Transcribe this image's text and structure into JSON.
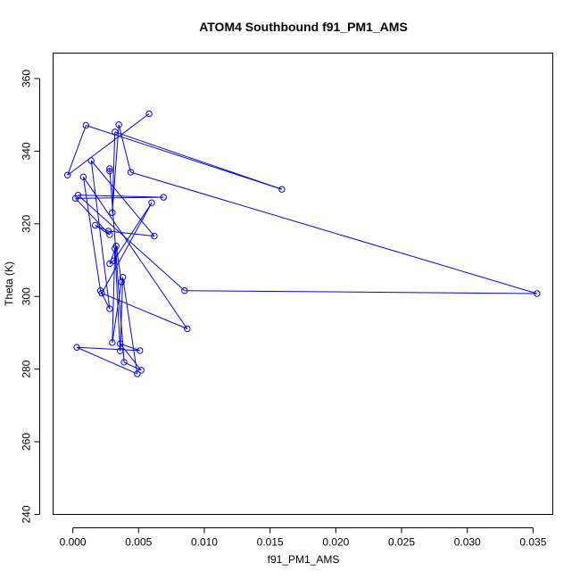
{
  "chart_data": {
    "type": "line",
    "title": "ATOM4 Southbound f91_PM1_AMS",
    "xlabel": "f91_PM1_AMS",
    "ylabel": "Theta (K)",
    "xlim": [
      -0.0015,
      0.0365
    ],
    "ylim": [
      240,
      367
    ],
    "xticks": [
      "0.000",
      "0.005",
      "0.010",
      "0.015",
      "0.020",
      "0.025",
      "0.030",
      "0.035"
    ],
    "yticks": [
      "240",
      "260",
      "280",
      "300",
      "320",
      "340",
      "360"
    ],
    "grid": false,
    "legend": "none",
    "marker": "open-circle",
    "color": "#0000ff",
    "series": [
      {
        "points": [
          [
            0.0058,
            350.3
          ],
          [
            -0.0004,
            333.4
          ],
          [
            0.001,
            347.1
          ],
          [
            0.0159,
            329.5
          ],
          [
            0.0032,
            345.3
          ],
          [
            0.003,
            323.1
          ],
          [
            0.0035,
            347.3
          ],
          [
            0.0044,
            334.2
          ],
          [
            0.0353,
            300.8
          ],
          [
            0.0085,
            301.6
          ],
          [
            0.0004,
            327.9
          ],
          [
            0.0069,
            327.3
          ],
          [
            0.0002,
            327.0
          ],
          [
            0.0028,
            317.0
          ],
          [
            0.0017,
            319.6
          ],
          [
            0.0027,
            318.0
          ],
          [
            0.0062,
            316.6
          ],
          [
            0.0014,
            337.4
          ],
          [
            0.0028,
            296.6
          ],
          [
            0.0021,
            301.6
          ],
          [
            0.0008,
            332.9
          ],
          [
            0.0087,
            291.1
          ],
          [
            0.0022,
            300.9
          ],
          [
            0.006,
            325.8
          ],
          [
            0.0031,
            309.8
          ],
          [
            0.0028,
            309.0
          ],
          [
            0.0033,
            313.9
          ],
          [
            0.0037,
            304.0
          ],
          [
            0.003,
            287.3
          ],
          [
            0.0032,
            313.2
          ],
          [
            0.0036,
            285.0
          ],
          [
            0.0038,
            305.3
          ],
          [
            0.0049,
            278.7
          ],
          [
            0.0003,
            286.0
          ],
          [
            0.0051,
            285.1
          ],
          [
            0.0036,
            287.0
          ],
          [
            0.0052,
            279.7
          ],
          [
            0.0039,
            281.9
          ],
          [
            0.0028,
            335.2
          ],
          [
            0.0028,
            334.5
          ]
        ]
      }
    ]
  }
}
